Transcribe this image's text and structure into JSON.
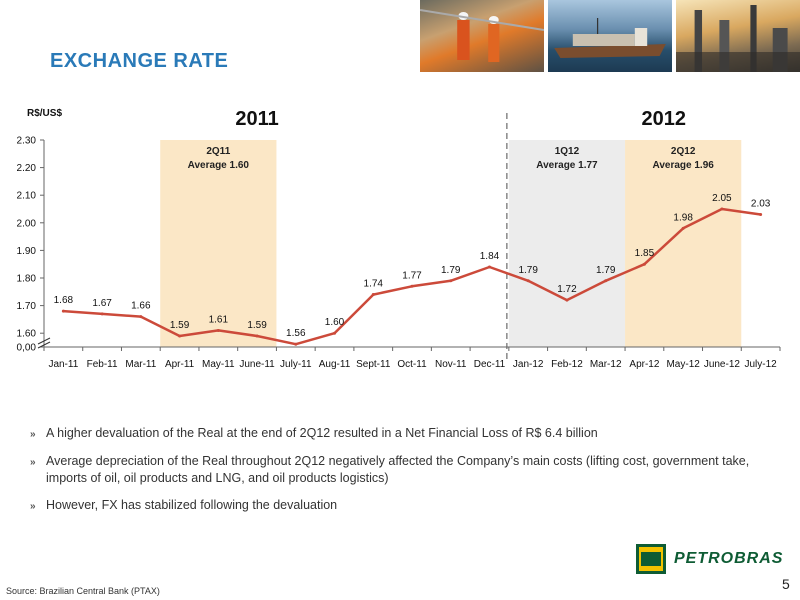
{
  "header": {
    "title": "EXCHANGE RATE"
  },
  "footer": {
    "source": "Source: Brazilian Central Bank (PTAX)",
    "page": "5",
    "logo_text": "PETROBRAS",
    "logo_badge": "BR"
  },
  "bullets": [
    "A higher devaluation of the Real at the end of 2Q12 resulted in a Net Financial Loss of R$ 6.4 billion",
    "Average depreciation of the Real throughout 2Q12 negatively affected the Company’s main costs (lifting cost, government take, imports of oil, oil products and LNG, and oil products logistics)",
    "However, FX  has stabilized following the devaluation"
  ],
  "colors": {
    "line": "#cc4a3a",
    "title": "#2a7ab8",
    "highlight_orange": "#fbe7c6",
    "highlight_gray": "#ececec",
    "logo_green": "#0e5c34",
    "logo_yellow": "#f3c200"
  },
  "chart_data": {
    "type": "line",
    "unit_label": "R$/US$",
    "categories": [
      "Jan-11",
      "Feb-11",
      "Mar-11",
      "Apr-11",
      "May-11",
      "June-11",
      "July-11",
      "Aug-11",
      "Sept-11",
      "Oct-11",
      "Nov-11",
      "Dec-11",
      "Jan-12",
      "Feb-12",
      "Mar-12",
      "Apr-12",
      "May-12",
      "June-12",
      "July-12"
    ],
    "values": [
      1.68,
      1.67,
      1.66,
      1.59,
      1.61,
      1.59,
      1.56,
      1.6,
      1.74,
      1.77,
      1.79,
      1.84,
      1.79,
      1.72,
      1.79,
      1.85,
      1.98,
      2.05,
      2.03
    ],
    "data_labels": [
      "1.68",
      "1.67",
      "1.66",
      "1.59",
      "1.61",
      "1.59",
      "1.56",
      "1.60",
      "1.74",
      "1.77",
      "1.79",
      "1.84",
      "1.79",
      "1.72",
      "1.79",
      "1.85",
      "1.98",
      "2.05",
      "2.03"
    ],
    "y_ticks": [
      "0,00",
      "1.60",
      "1.70",
      "1.80",
      "1.90",
      "2.00",
      "2.10",
      "2.20",
      "2.30"
    ],
    "y_tick_values": [
      1.55,
      1.6,
      1.7,
      1.8,
      1.9,
      2.0,
      2.1,
      2.2,
      2.3
    ],
    "ylim": [
      1.55,
      2.3
    ],
    "axis_break": true,
    "year_labels": [
      {
        "text": "2011",
        "center_category": 5
      },
      {
        "text": "2012",
        "center_category": 15.5
      }
    ],
    "year_divider_after_category": 11,
    "highlights": [
      {
        "from": 3,
        "to": 5,
        "color": "orange",
        "label1": "2Q11",
        "label2": "Average 1.60"
      },
      {
        "from": 12,
        "to": 14,
        "color": "gray",
        "label1": "1Q12",
        "label2": "Average 1.77"
      },
      {
        "from": 15,
        "to": 17,
        "color": "orange",
        "label1": "2Q12",
        "label2": "Average 1.96"
      }
    ]
  }
}
